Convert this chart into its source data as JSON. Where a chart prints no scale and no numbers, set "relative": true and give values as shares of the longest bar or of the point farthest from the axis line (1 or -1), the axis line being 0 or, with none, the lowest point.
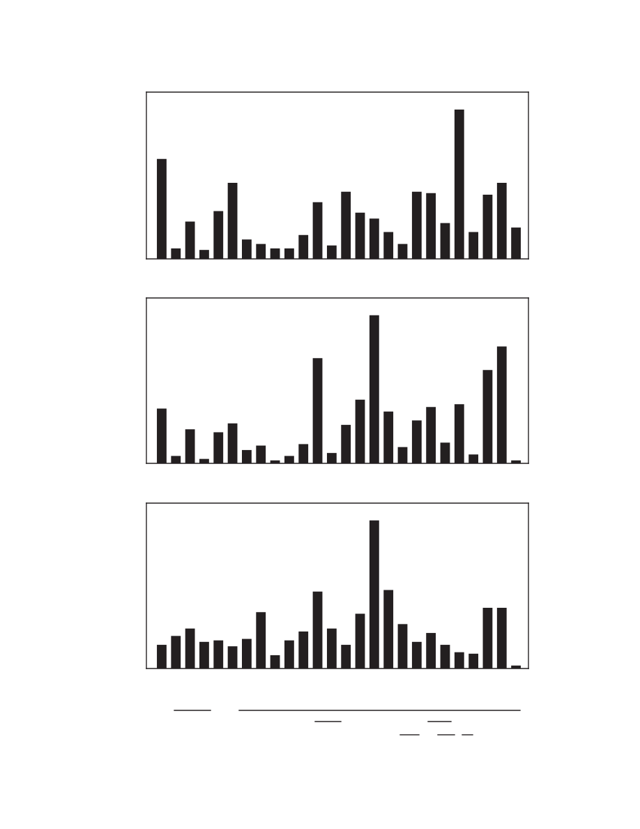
{
  "chart_data": [
    {
      "type": "bar",
      "relative": true,
      "color": "#231f20",
      "categories": [
        null,
        null,
        null,
        null,
        null,
        null,
        null,
        null,
        null,
        null,
        null,
        null,
        null,
        null,
        null,
        null,
        null,
        null,
        null,
        null,
        null,
        null,
        null,
        null,
        null,
        null
      ],
      "values": [
        0.67,
        0.07,
        0.25,
        0.06,
        0.32,
        0.51,
        0.13,
        0.1,
        0.07,
        0.07,
        0.16,
        0.38,
        0.09,
        0.45,
        0.31,
        0.27,
        0.18,
        0.1,
        0.45,
        0.44,
        0.24,
        1,
        0.18,
        0.43,
        0.51,
        0.21
      ]
    },
    {
      "type": "bar",
      "relative": true,
      "color": "#231f20",
      "categories": [
        null,
        null,
        null,
        null,
        null,
        null,
        null,
        null,
        null,
        null,
        null,
        null,
        null,
        null,
        null,
        null,
        null,
        null,
        null,
        null,
        null,
        null,
        null,
        null,
        null,
        null
      ],
      "values": [
        0.37,
        0.05,
        0.23,
        0.03,
        0.21,
        0.27,
        0.09,
        0.12,
        0.02,
        0.05,
        0.13,
        0.71,
        0.07,
        0.26,
        0.43,
        1,
        0.35,
        0.11,
        0.29,
        0.38,
        0.14,
        0.4,
        0.06,
        0.63,
        0.79,
        0.02
      ]
    },
    {
      "type": "bar",
      "relative": true,
      "color": "#231f20",
      "categories": [
        null,
        null,
        null,
        null,
        null,
        null,
        null,
        null,
        null,
        null,
        null,
        null,
        null,
        null,
        null,
        null,
        null,
        null,
        null,
        null,
        null,
        null,
        null,
        null,
        null,
        null
      ],
      "values": [
        0.16,
        0.22,
        0.27,
        0.18,
        0.19,
        0.15,
        0.2,
        0.38,
        0.09,
        0.19,
        0.25,
        0.52,
        0.27,
        0.16,
        0.37,
        1,
        0.53,
        0.3,
        0.18,
        0.24,
        0.16,
        0.11,
        0.1,
        0.41,
        0.41,
        0.02
      ]
    }
  ]
}
